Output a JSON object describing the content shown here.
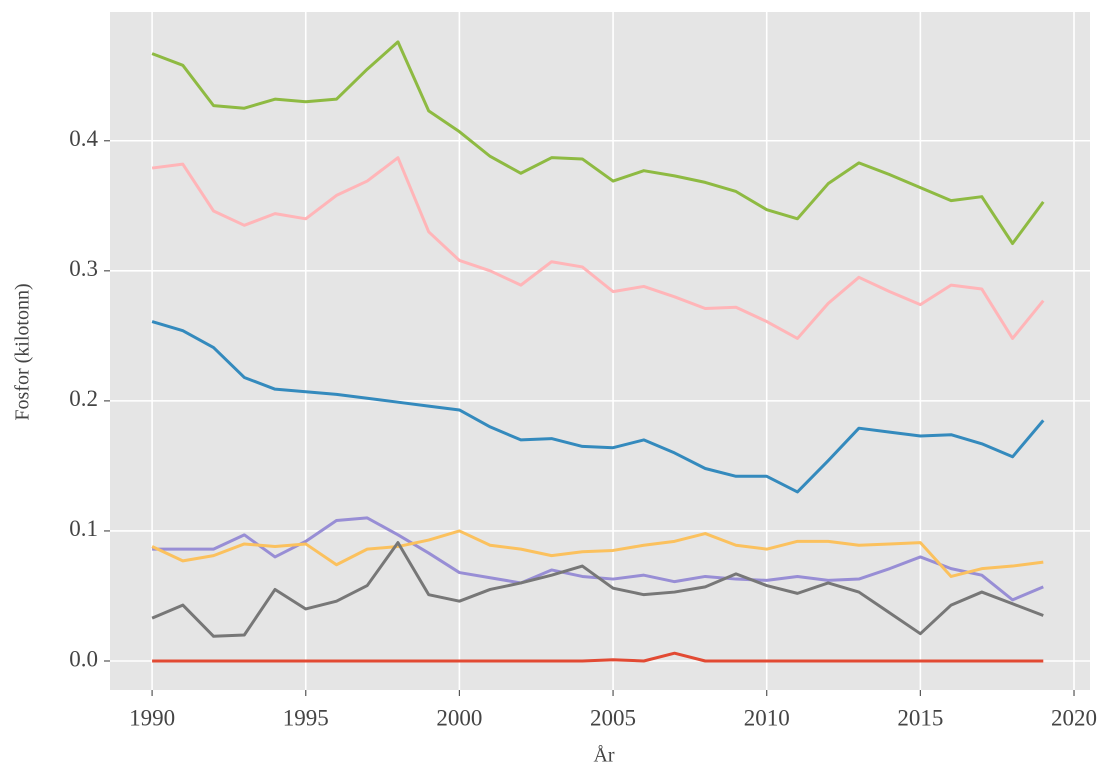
{
  "chart_data": {
    "type": "line",
    "xlabel": "År",
    "ylabel": "Fosfor (kilotonn)",
    "x": [
      1990,
      1991,
      1992,
      1993,
      1994,
      1995,
      1996,
      1997,
      1998,
      1999,
      2000,
      2001,
      2002,
      2003,
      2004,
      2005,
      2006,
      2007,
      2008,
      2009,
      2010,
      2011,
      2012,
      2013,
      2014,
      2015,
      2016,
      2017,
      2018,
      2019
    ],
    "series": [
      {
        "color": "#8eba42",
        "values": [
          0.467,
          0.458,
          0.427,
          0.425,
          0.432,
          0.43,
          0.432,
          0.455,
          0.476,
          0.423,
          0.407,
          0.388,
          0.375,
          0.387,
          0.386,
          0.369,
          0.377,
          0.373,
          0.368,
          0.361,
          0.347,
          0.34,
          0.367,
          0.383,
          0.374,
          0.364,
          0.354,
          0.357,
          0.321,
          0.353
        ]
      },
      {
        "color": "#ffb5b8",
        "values": [
          0.379,
          0.382,
          0.346,
          0.335,
          0.344,
          0.34,
          0.358,
          0.369,
          0.387,
          0.33,
          0.308,
          0.3,
          0.289,
          0.307,
          0.303,
          0.284,
          0.288,
          0.28,
          0.271,
          0.272,
          0.261,
          0.248,
          0.275,
          0.295,
          0.284,
          0.274,
          0.289,
          0.286,
          0.248,
          0.277
        ]
      },
      {
        "color": "#348abd",
        "values": [
          0.261,
          0.254,
          0.241,
          0.218,
          0.209,
          0.207,
          0.205,
          0.202,
          0.199,
          0.196,
          0.193,
          0.18,
          0.17,
          0.171,
          0.165,
          0.164,
          0.17,
          0.16,
          0.148,
          0.142,
          0.142,
          0.13,
          0.154,
          0.179,
          0.176,
          0.173,
          0.174,
          0.167,
          0.157,
          0.185
        ]
      },
      {
        "color": "#988ed5",
        "values": [
          0.086,
          0.086,
          0.086,
          0.097,
          0.08,
          0.092,
          0.108,
          0.11,
          0.097,
          0.083,
          0.068,
          0.064,
          0.06,
          0.07,
          0.065,
          0.063,
          0.066,
          0.061,
          0.065,
          0.063,
          0.062,
          0.065,
          0.062,
          0.063,
          0.071,
          0.08,
          0.071,
          0.066,
          0.047,
          0.057
        ]
      },
      {
        "color": "#fbc15e",
        "values": [
          0.088,
          0.077,
          0.081,
          0.09,
          0.088,
          0.09,
          0.074,
          0.086,
          0.088,
          0.093,
          0.1,
          0.089,
          0.086,
          0.081,
          0.084,
          0.085,
          0.089,
          0.092,
          0.098,
          0.089,
          0.086,
          0.092,
          0.092,
          0.089,
          0.09,
          0.091,
          0.065,
          0.071,
          0.073,
          0.076
        ]
      },
      {
        "color": "#777777",
        "values": [
          0.033,
          0.043,
          0.019,
          0.02,
          0.055,
          0.04,
          0.046,
          0.058,
          0.091,
          0.051,
          0.046,
          0.055,
          0.06,
          0.066,
          0.073,
          0.056,
          0.051,
          0.053,
          0.057,
          0.067,
          0.058,
          0.052,
          0.06,
          0.053,
          0.037,
          0.021,
          0.043,
          0.053,
          0.044,
          0.035
        ]
      },
      {
        "color": "#e24a33",
        "values": [
          0,
          0,
          0,
          0,
          0,
          0,
          0,
          0,
          0,
          0,
          0,
          0,
          0,
          0,
          0,
          0.001,
          0,
          0.006,
          0,
          0,
          0,
          0,
          0,
          0,
          0,
          0,
          0,
          0,
          0,
          0
        ]
      }
    ],
    "xlim": [
      1988.63,
      2020.52
    ],
    "xticks": [
      1990,
      1995,
      2000,
      2005,
      2010,
      2015,
      2020
    ],
    "ylim": [
      -0.0223,
      0.499
    ],
    "yticks": [
      {
        "value": 0,
        "label": "0.0"
      },
      0.1,
      0.2,
      0.3,
      0.4
    ],
    "grid": true,
    "background": "#e5e5e5",
    "grid_color": "#ffffff"
  }
}
